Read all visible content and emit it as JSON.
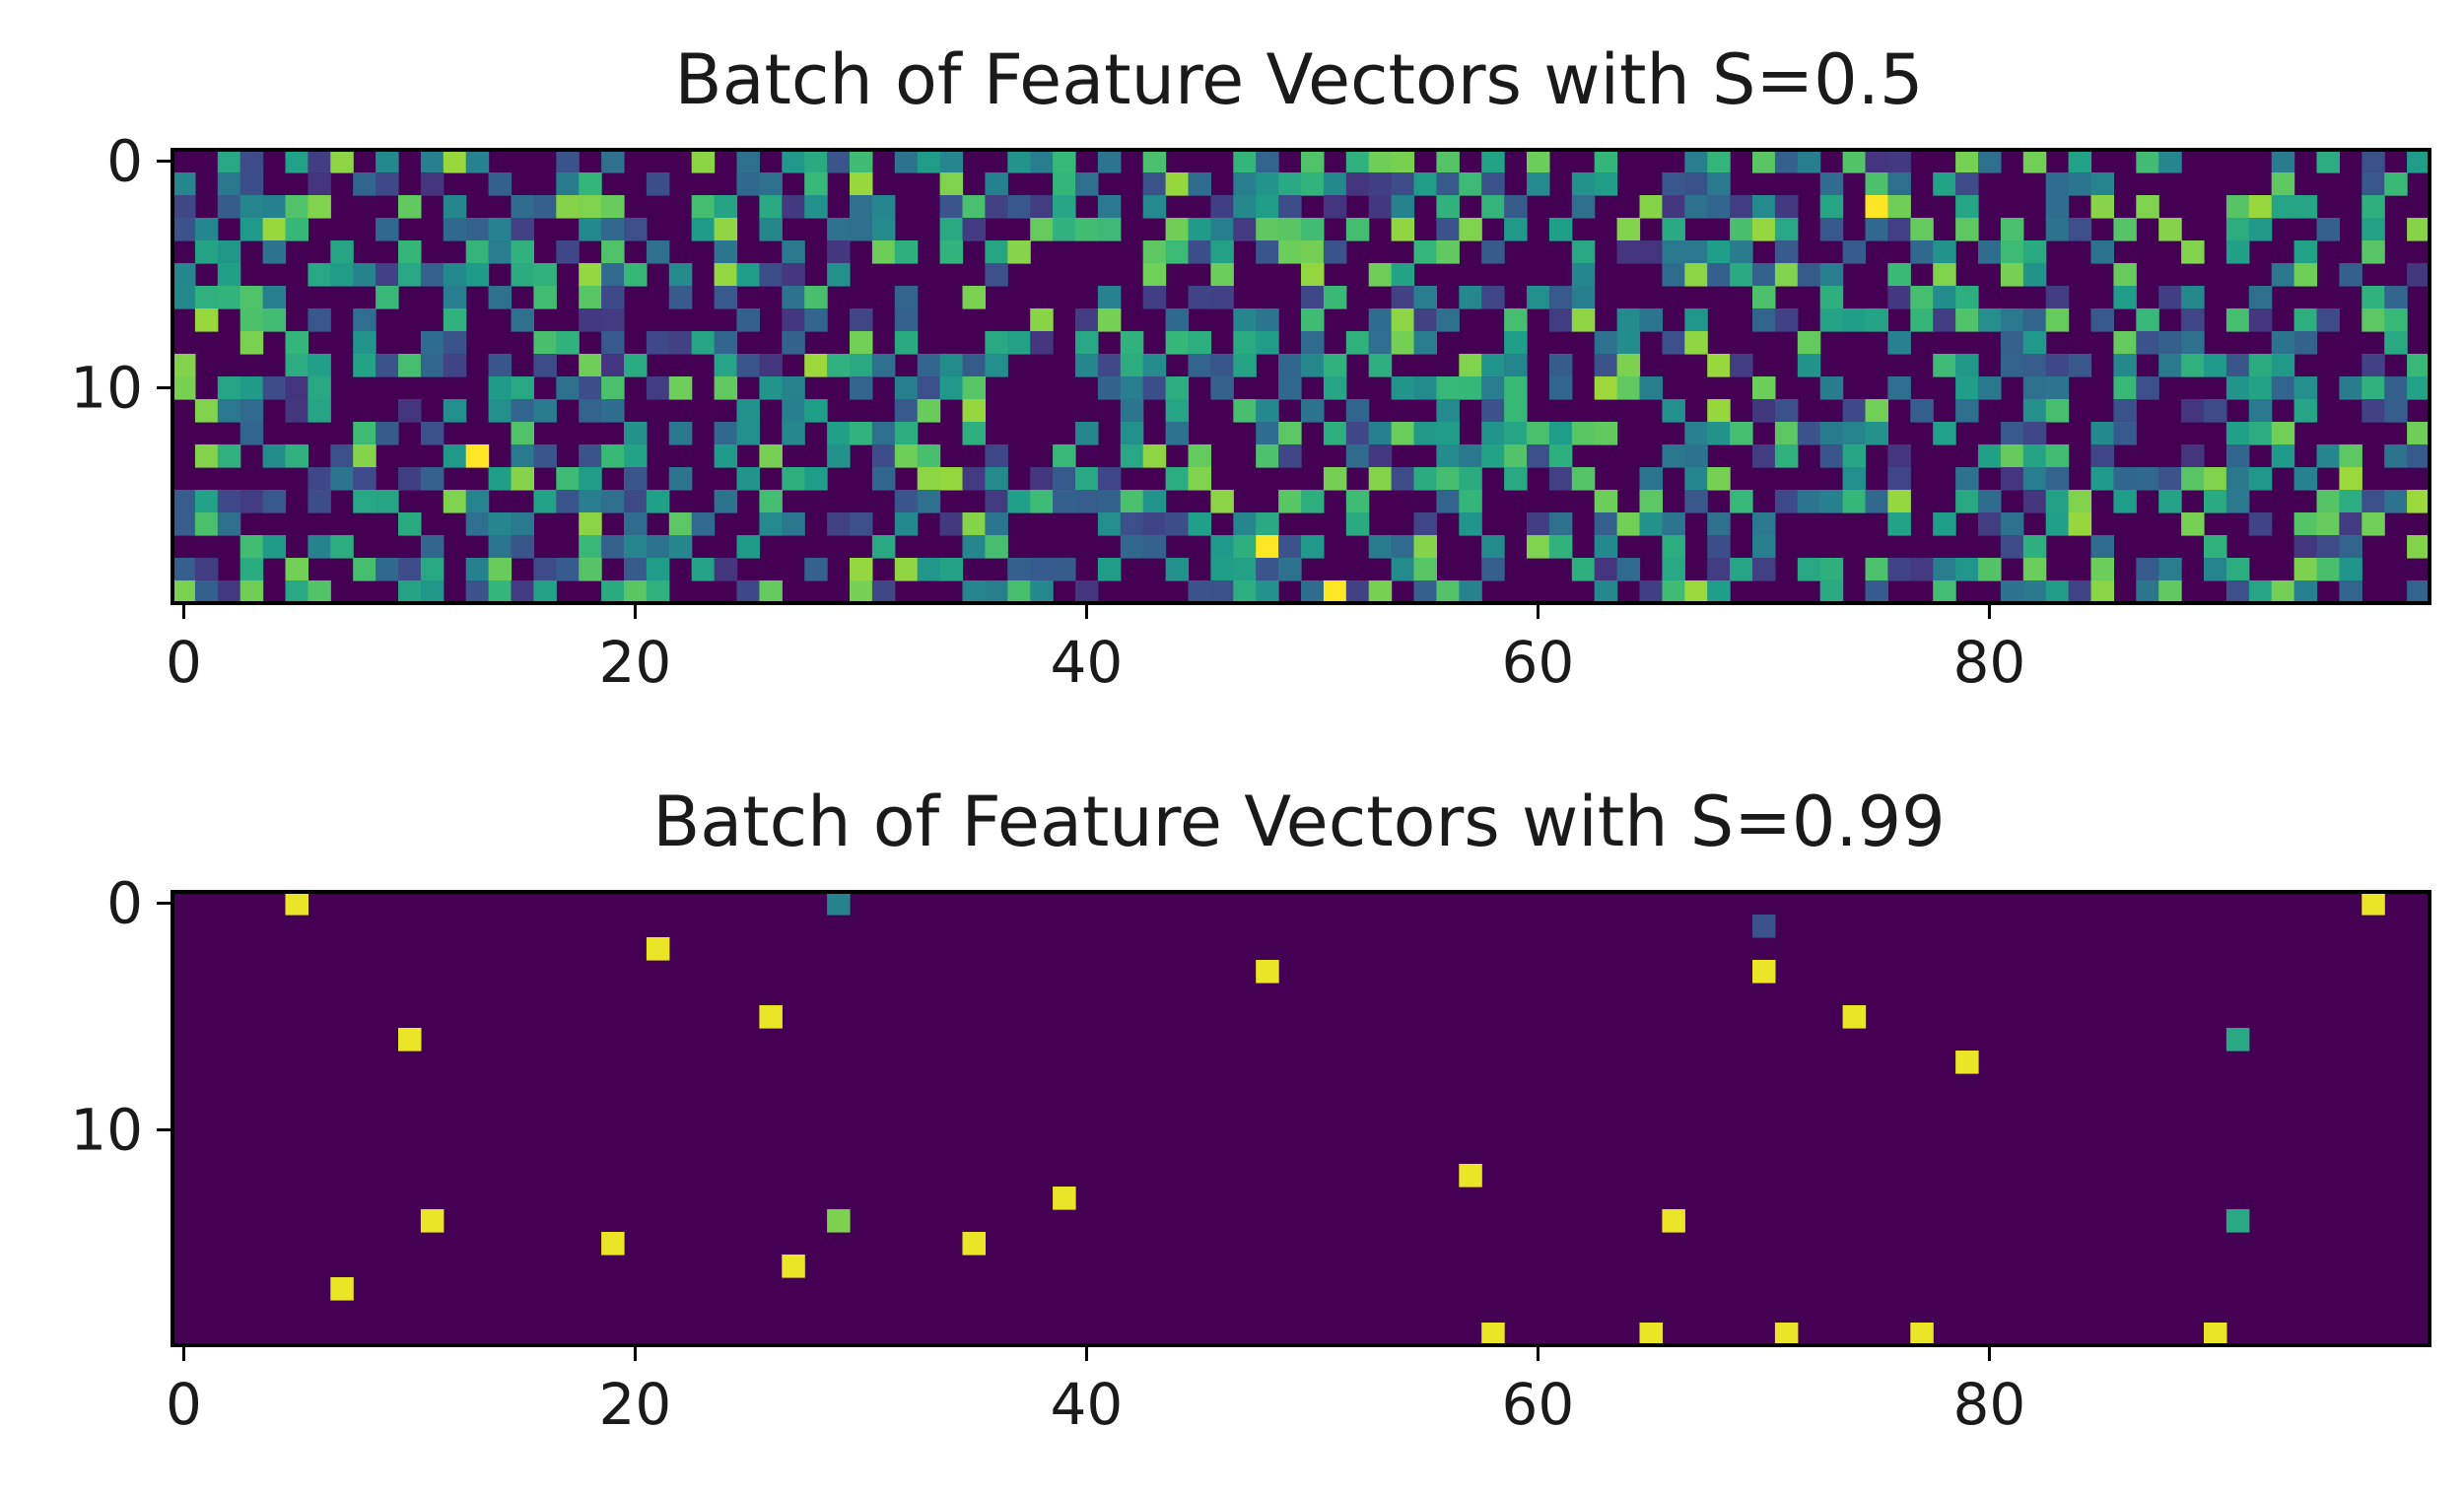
{
  "chart_data": [
    {
      "type": "heatmap",
      "title": "Batch of Feature Vectors with S=0.5",
      "xlabel": "",
      "ylabel": "",
      "rows": 20,
      "cols": 100,
      "xlim": [
        -0.5,
        99.5
      ],
      "ylim": [
        19.5,
        -0.5
      ],
      "x_ticks": [
        0,
        20,
        40,
        60,
        80
      ],
      "y_ticks": [
        0,
        10
      ],
      "colormap": "viridis",
      "value_range": [
        0,
        1
      ],
      "sparsity": 0.5,
      "bright_cells": [
        [
          13,
          13
        ],
        [
          17,
          48
        ],
        [
          19,
          51
        ],
        [
          2,
          75
        ]
      ]
    },
    {
      "type": "heatmap",
      "title": "Batch of Feature Vectors with S=0.99",
      "xlabel": "",
      "ylabel": "",
      "rows": 20,
      "cols": 100,
      "xlim": [
        -0.5,
        99.5
      ],
      "ylim": [
        19.5,
        -0.5
      ],
      "x_ticks": [
        0,
        20,
        40,
        60,
        80
      ],
      "y_ticks": [
        0,
        10
      ],
      "colormap": "viridis",
      "value_range": [
        0,
        1
      ],
      "background_value": 0,
      "cells": [
        {
          "row": 0,
          "col": 5,
          "value": 0.97
        },
        {
          "row": 0,
          "col": 29,
          "value": 0.45
        },
        {
          "row": 0,
          "col": 97,
          "value": 0.97
        },
        {
          "row": 1,
          "col": 70,
          "value": 0.25
        },
        {
          "row": 2,
          "col": 21,
          "value": 0.97
        },
        {
          "row": 3,
          "col": 48,
          "value": 0.97
        },
        {
          "row": 3,
          "col": 70,
          "value": 0.97
        },
        {
          "row": 5,
          "col": 26,
          "value": 0.97
        },
        {
          "row": 5,
          "col": 74,
          "value": 0.97
        },
        {
          "row": 6,
          "col": 10,
          "value": 0.97
        },
        {
          "row": 6,
          "col": 91,
          "value": 0.6
        },
        {
          "row": 7,
          "col": 79,
          "value": 0.97
        },
        {
          "row": 12,
          "col": 57,
          "value": 0.97
        },
        {
          "row": 13,
          "col": 39,
          "value": 0.97
        },
        {
          "row": 14,
          "col": 11,
          "value": 0.97
        },
        {
          "row": 14,
          "col": 29,
          "value": 0.8
        },
        {
          "row": 14,
          "col": 66,
          "value": 0.97
        },
        {
          "row": 14,
          "col": 91,
          "value": 0.6
        },
        {
          "row": 15,
          "col": 19,
          "value": 0.97
        },
        {
          "row": 15,
          "col": 35,
          "value": 0.97
        },
        {
          "row": 16,
          "col": 27,
          "value": 0.97
        },
        {
          "row": 17,
          "col": 7,
          "value": 0.97
        },
        {
          "row": 19,
          "col": 58,
          "value": 0.97
        },
        {
          "row": 19,
          "col": 65,
          "value": 0.97
        },
        {
          "row": 19,
          "col": 71,
          "value": 0.97
        },
        {
          "row": 19,
          "col": 77,
          "value": 0.97
        },
        {
          "row": 19,
          "col": 90,
          "value": 0.97
        }
      ]
    }
  ]
}
